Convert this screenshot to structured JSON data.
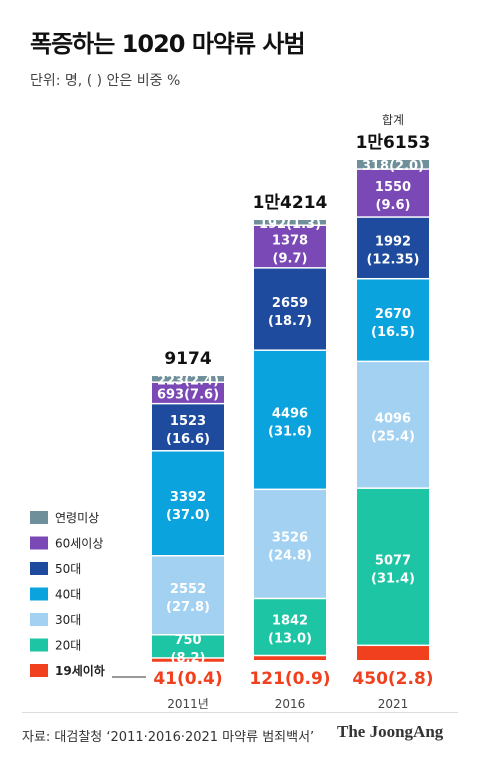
{
  "title": "폭증하는 1020 마약류 사범",
  "subtitle": "단위: 명, ( ) 안은 비중 %",
  "source": "자료: 대검찰청 ‘2011·2016·2021 마약류 범죄백서’",
  "brand": "The JoongAng",
  "chart_data": {
    "type": "bar",
    "stacked": true,
    "categories": [
      "2011년",
      "2016",
      "2021"
    ],
    "totals": [
      {
        "label": "",
        "value": "9174"
      },
      {
        "label": "",
        "value": "1만4214"
      },
      {
        "label": "합계",
        "value": "1만6153"
      }
    ],
    "series": [
      {
        "name": "19세이하",
        "color": "#f0401e",
        "values": [
          41,
          121,
          450
        ],
        "labels": [
          "41(0.4)",
          "121(0.9)",
          "450(2.8)"
        ]
      },
      {
        "name": "20대",
        "color": "#1ec5a5",
        "values": [
          750,
          1842,
          5077
        ],
        "labels": [
          "750\n(8.2)",
          "1842\n(13.0)",
          "5077\n(31.4)"
        ]
      },
      {
        "name": "30대",
        "color": "#a3d1f2",
        "values": [
          2552,
          3526,
          4096
        ],
        "labels": [
          "2552\n(27.8)",
          "3526\n(24.8)",
          "4096\n(25.4)"
        ]
      },
      {
        "name": "40대",
        "color": "#0aa3dd",
        "values": [
          3392,
          4496,
          2670
        ],
        "labels": [
          "3392\n(37.0)",
          "4496\n(31.6)",
          "2670\n(16.5)"
        ]
      },
      {
        "name": "50대",
        "color": "#1e4b9d",
        "values": [
          1523,
          2659,
          1992
        ],
        "labels": [
          "1523\n(16.6)",
          "2659\n(18.7)",
          "1992\n(12.35)"
        ]
      },
      {
        "name": "60세이상",
        "color": "#7a49b6",
        "values": [
          693,
          1378,
          1550
        ],
        "labels": [
          "693(7.6)",
          "1378\n(9.7)",
          "1550\n(9.6)"
        ]
      },
      {
        "name": "연령미상",
        "color": "#6f8f9a",
        "values": [
          223,
          192,
          318
        ],
        "labels": [
          "223(2.4)",
          "192(1.3)",
          "318(2.0)"
        ]
      }
    ],
    "legend_order": [
      "연령미상",
      "60세이상",
      "50대",
      "40대",
      "30대",
      "20대",
      "19세이하"
    ],
    "ylim": [
      0,
      17000
    ],
    "grid": false,
    "legend_position": "left"
  }
}
